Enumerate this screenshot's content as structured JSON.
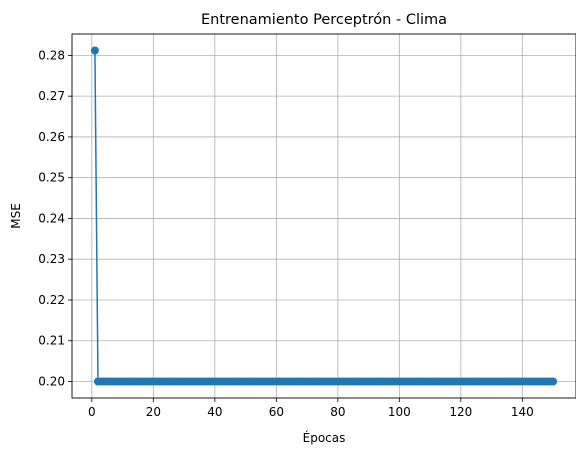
{
  "chart_data": {
    "type": "line",
    "title": "Entrenamiento Perceptrón - Clima",
    "xlabel": "Épocas",
    "ylabel": "MSE",
    "xlim": [
      -6.45,
      157.45
    ],
    "ylim": [
      0.19595,
      0.28525
    ],
    "xticks": [
      0,
      20,
      40,
      60,
      80,
      100,
      120,
      140
    ],
    "yticks": [
      0.2,
      0.21,
      0.22,
      0.23,
      0.24,
      0.25,
      0.26,
      0.27,
      0.28
    ],
    "grid": true,
    "series": [
      {
        "color": "#1f77b4",
        "marker": "circle",
        "x_start": 1,
        "x_end": 150,
        "values": [
          0.2812,
          0.2
        ]
      }
    ]
  }
}
